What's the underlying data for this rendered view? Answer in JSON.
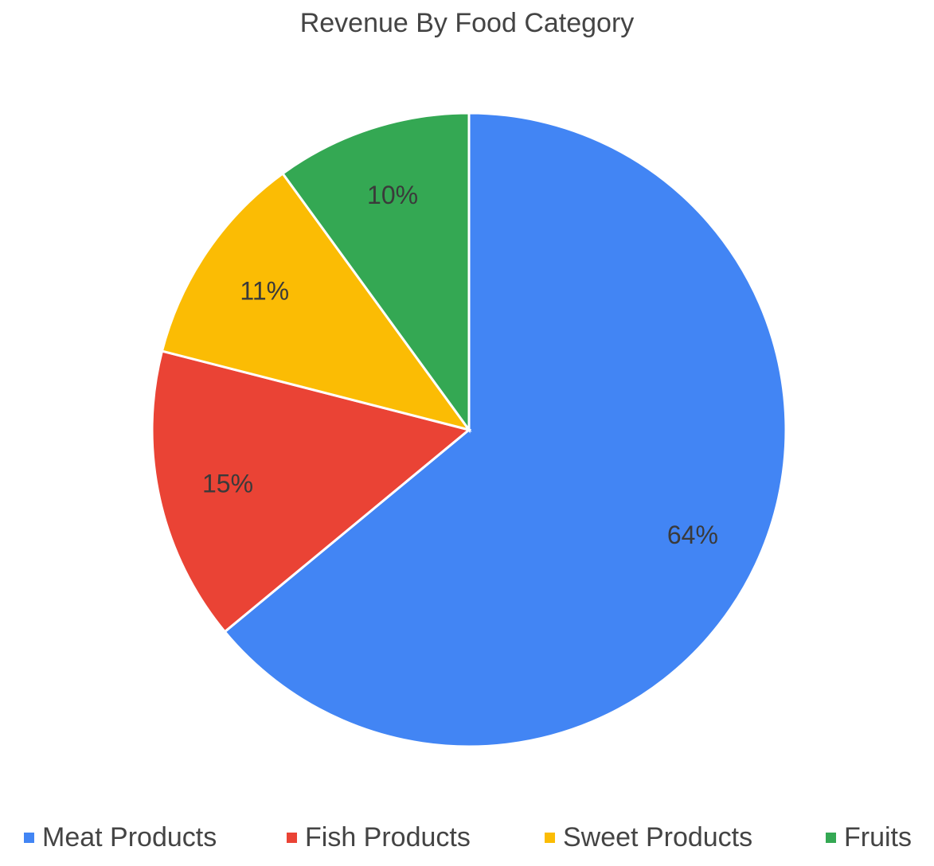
{
  "chart_data": {
    "type": "pie",
    "title": "Revenue By Food Category",
    "categories": [
      "Meat Products",
      "Fish Products",
      "Sweet Products",
      "Fruits"
    ],
    "values": [
      64,
      15,
      11,
      10
    ],
    "labels": [
      "64%",
      "15%",
      "11%",
      "10%"
    ],
    "colors": [
      "#4285F4",
      "#EA4335",
      "#FBBC04",
      "#34A853"
    ],
    "legend_position": "bottom",
    "start_angle_deg": 0,
    "direction": "clockwise"
  }
}
